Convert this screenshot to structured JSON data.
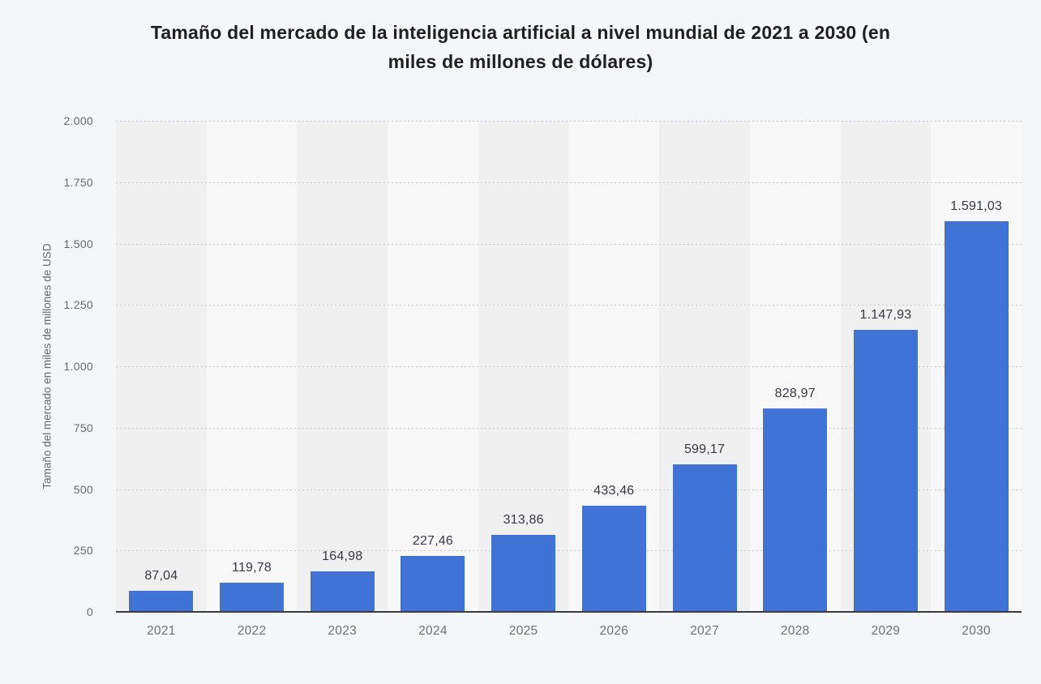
{
  "title": {
    "full": "Tamaño del mercado de la inteligencia artificial a nivel mundial de 2021 a 2030 (en miles de millones de dólares)",
    "line1": "Tamaño del mercado de la inteligencia artificial a nivel mundial de 2021 a 2030 (en",
    "line2": "miles de millones de dólares)"
  },
  "chart_data": {
    "type": "bar",
    "title": "Tamaño del mercado de la inteligencia artificial a nivel mundial de 2021 a 2030 (en miles de millones de dólares)",
    "categories": [
      "2021",
      "2022",
      "2023",
      "2024",
      "2025",
      "2026",
      "2027",
      "2028",
      "2029",
      "2030"
    ],
    "values": [
      87.04,
      119.78,
      164.98,
      227.46,
      313.86,
      433.46,
      599.17,
      828.97,
      1147.93,
      1591.03
    ],
    "value_labels": [
      "87,04",
      "119,78",
      "164,98",
      "227,46",
      "313,86",
      "433,46",
      "599,17",
      "828,97",
      "1.147,93",
      "1.591,03"
    ],
    "xlabel": "",
    "ylabel": "Tamaño del mercado en miles de millones de USD",
    "ylim": [
      0,
      2000
    ],
    "yticks": [
      0,
      250,
      500,
      750,
      1000,
      1250,
      1500,
      1750,
      2000
    ],
    "ytick_labels": [
      "0",
      "250",
      "500",
      "750",
      "1.000",
      "1.250",
      "1.500",
      "1.750",
      "2.000"
    ],
    "grid": "horizontal-dotted",
    "legend": "none",
    "colors": {
      "bar": "#4073d5",
      "band_odd": "#f0f0f1",
      "band_even": "#f8f8f9",
      "grid": "#c6c7c9",
      "axis_line": "#3b3b3d",
      "page_bg": "#f5f6f7",
      "title_text": "#202020",
      "tick_text": "#66696d",
      "value_text": "#37393c"
    }
  }
}
